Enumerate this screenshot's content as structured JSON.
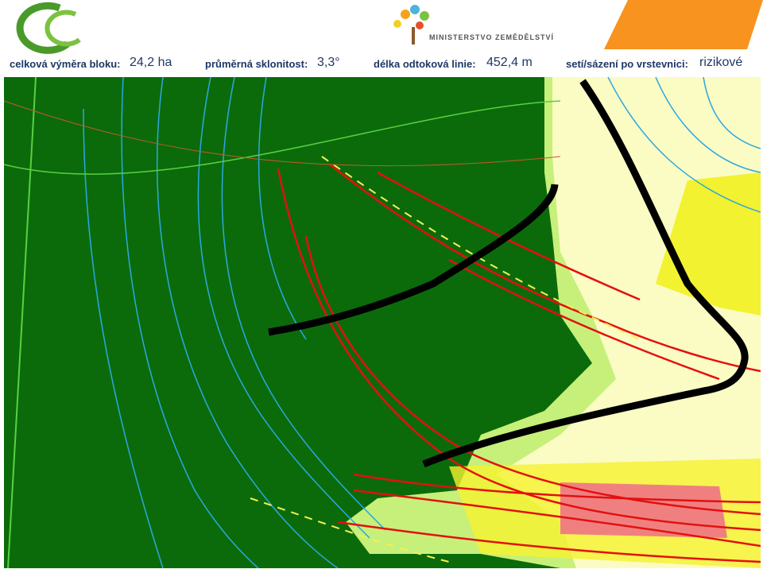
{
  "header": {
    "logo_text": "MINISTERSTVO ZEMĚDĚLSTVÍ",
    "stats": [
      {
        "label": "celková výměra bloku:",
        "value": "24,2 ha"
      },
      {
        "label": "průměrná sklonitost:",
        "value": "3,3°"
      },
      {
        "label": "délka odtoková linie:",
        "value": "452,4 m"
      },
      {
        "label": "setí/sázení po vrstevnici:",
        "value": "rizikové"
      }
    ]
  }
}
